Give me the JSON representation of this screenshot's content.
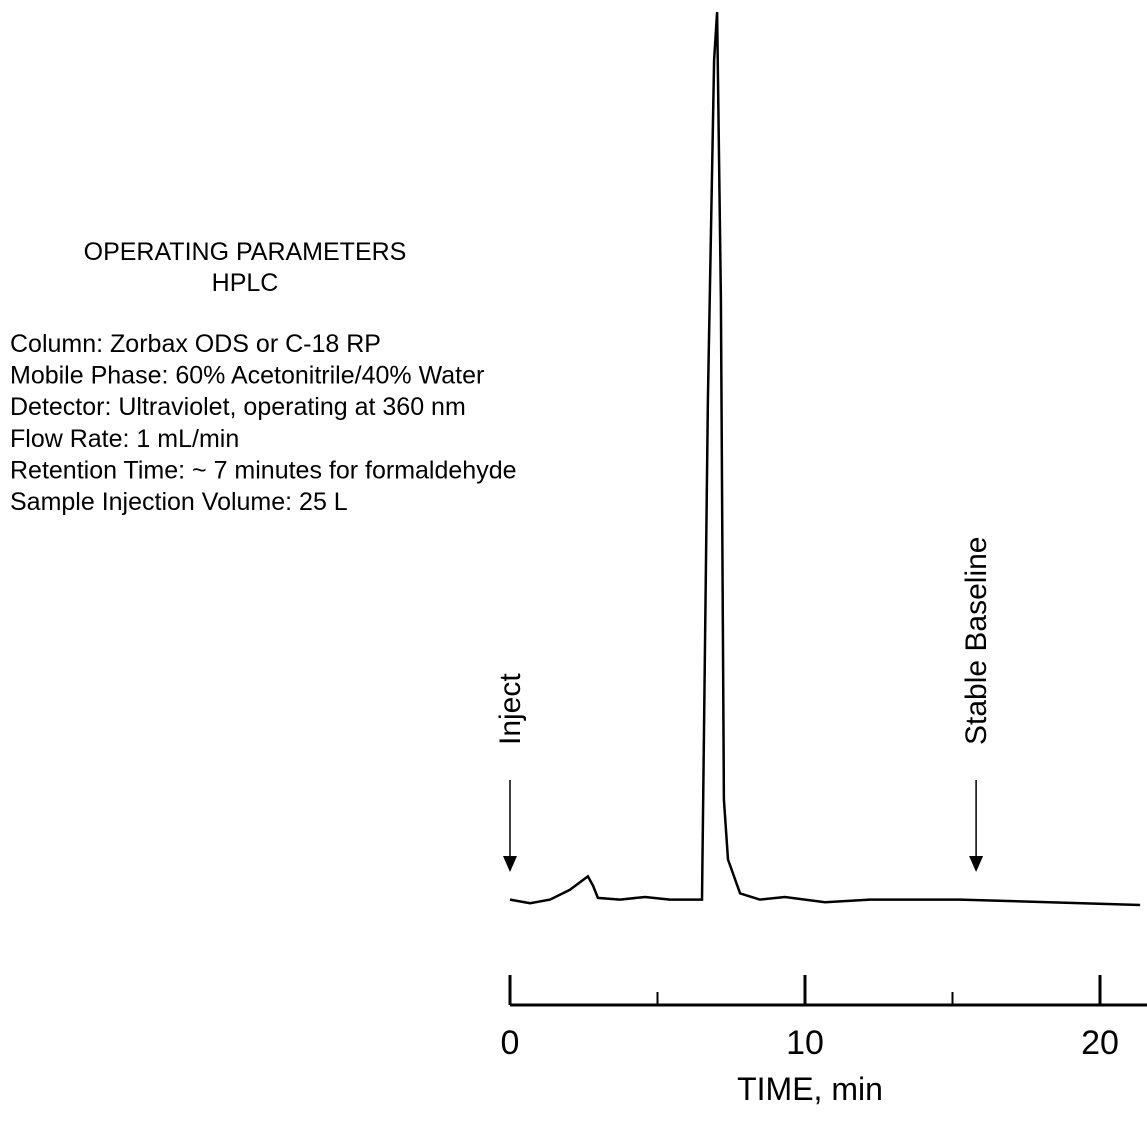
{
  "parameters": {
    "title": "OPERATING PARAMETERS",
    "subtitle": "HPLC",
    "lines": [
      "Column: Zorbax ODS or C-18 RP",
      "Mobile Phase: 60% Acetonitrile/40% Water",
      "Detector: Ultraviolet, operating at 360 nm",
      "Flow Rate: 1 mL/min",
      "Retention Time: ~ 7 minutes for formaldehyde",
      "Sample Injection Volume: 25  L"
    ]
  },
  "chart_data": {
    "type": "line",
    "x_label": "TIME, min",
    "x": [
      0,
      0.68,
      1.36,
      2.03,
      2.64,
      2.81,
      2.98,
      3.73,
      4.58,
      5.42,
      6.51,
      6.71,
      6.92,
      7.02,
      7.15,
      7.25,
      7.39,
      7.8,
      8.47,
      9.32,
      10.68,
      12.2,
      15.25,
      21.36
    ],
    "values": [
      0.6,
      0.2,
      0.6,
      1.7,
      3.2,
      2.2,
      0.8,
      0.6,
      0.9,
      0.6,
      0.6,
      56.6,
      94.6,
      100,
      67.8,
      11.8,
      5.1,
      1.3,
      0.6,
      0.9,
      0.3,
      0.6,
      0.6,
      0
    ],
    "color": "#000000",
    "xlim": [
      0,
      21.6
    ],
    "ylim": [
      0,
      100
    ],
    "xticks": [
      0,
      10,
      20
    ],
    "minor_xticks": [
      5,
      15
    ],
    "annotations": [
      {
        "text": "Inject",
        "x": 0
      },
      {
        "text": "Stable Baseline",
        "x": 15.8
      }
    ]
  }
}
